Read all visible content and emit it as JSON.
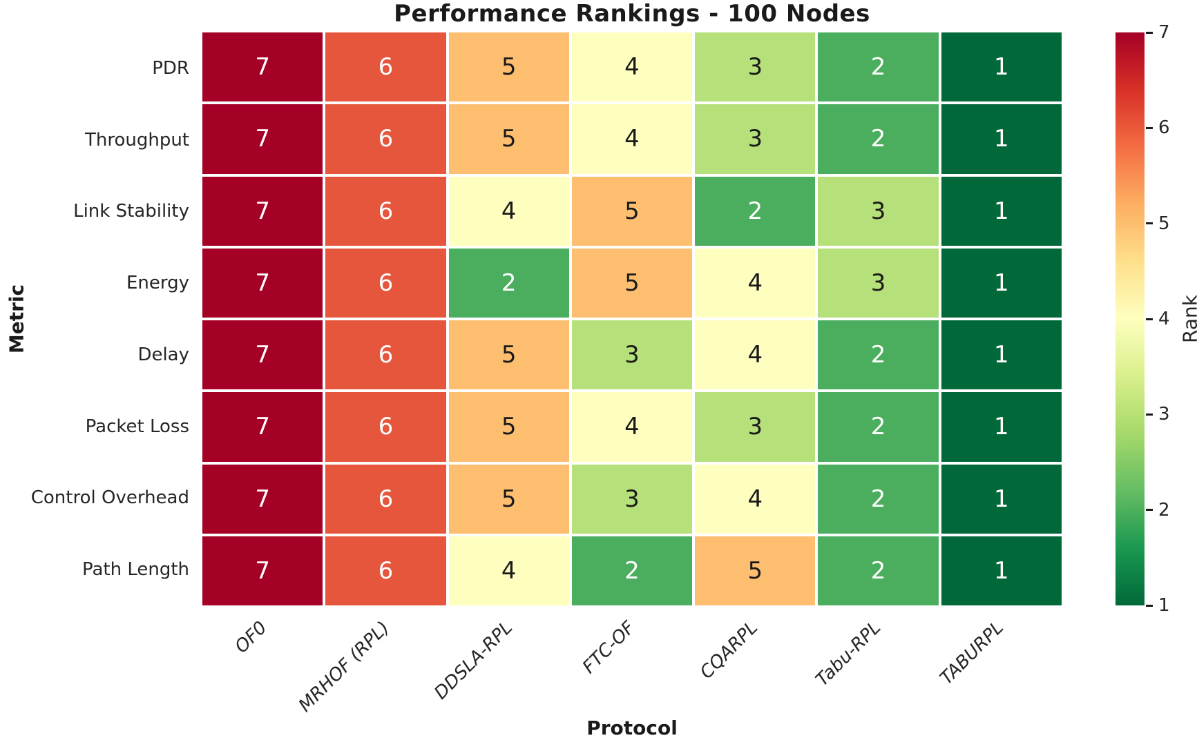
{
  "title": "Performance Rankings - 100 Nodes",
  "axes": {
    "xlabel": "Protocol",
    "ylabel": "Metric"
  },
  "colorbar": {
    "label": "Rank",
    "ticks": [
      7,
      6,
      5,
      4,
      3,
      2,
      1
    ],
    "min": 1,
    "max": 7
  },
  "chart_data": {
    "type": "heatmap",
    "title": "Performance Rankings - 100 Nodes",
    "xlabel": "Protocol",
    "ylabel": "Metric",
    "columns": [
      "OF0",
      "MRHOF (RPL)",
      "DDSLA-RPL",
      "FTC-OF",
      "CQARPL",
      "Tabu-RPL",
      "TABURPL"
    ],
    "rows": [
      "PDR",
      "Throughput",
      "Link Stability",
      "Energy",
      "Delay",
      "Packet Loss",
      "Control Overhead",
      "Path Length"
    ],
    "values": [
      [
        7,
        6,
        5,
        4,
        3,
        2,
        1
      ],
      [
        7,
        6,
        5,
        4,
        3,
        2,
        1
      ],
      [
        7,
        6,
        4,
        5,
        2,
        3,
        1
      ],
      [
        7,
        6,
        2,
        5,
        4,
        3,
        1
      ],
      [
        7,
        6,
        5,
        3,
        4,
        2,
        1
      ],
      [
        7,
        6,
        5,
        4,
        3,
        2,
        1
      ],
      [
        7,
        6,
        5,
        3,
        4,
        2,
        1
      ],
      [
        7,
        6,
        4,
        2,
        5,
        2,
        1
      ]
    ],
    "value_range": [
      1,
      7
    ],
    "colormap": "RdYlGn_r",
    "rank_colors": {
      "1": "#016939",
      "2": "#4bae5e",
      "3": "#b5e07a",
      "4": "#feffbf",
      "5": "#fdbe70",
      "6": "#e5563c",
      "7": "#a50026"
    },
    "white_text_ranks": [
      7,
      6,
      2,
      1
    ],
    "annotation_colors": {
      "light": "#ffffff",
      "dark": "#1a1a1a"
    },
    "legend_position": "right-colorbar",
    "grid": false
  }
}
